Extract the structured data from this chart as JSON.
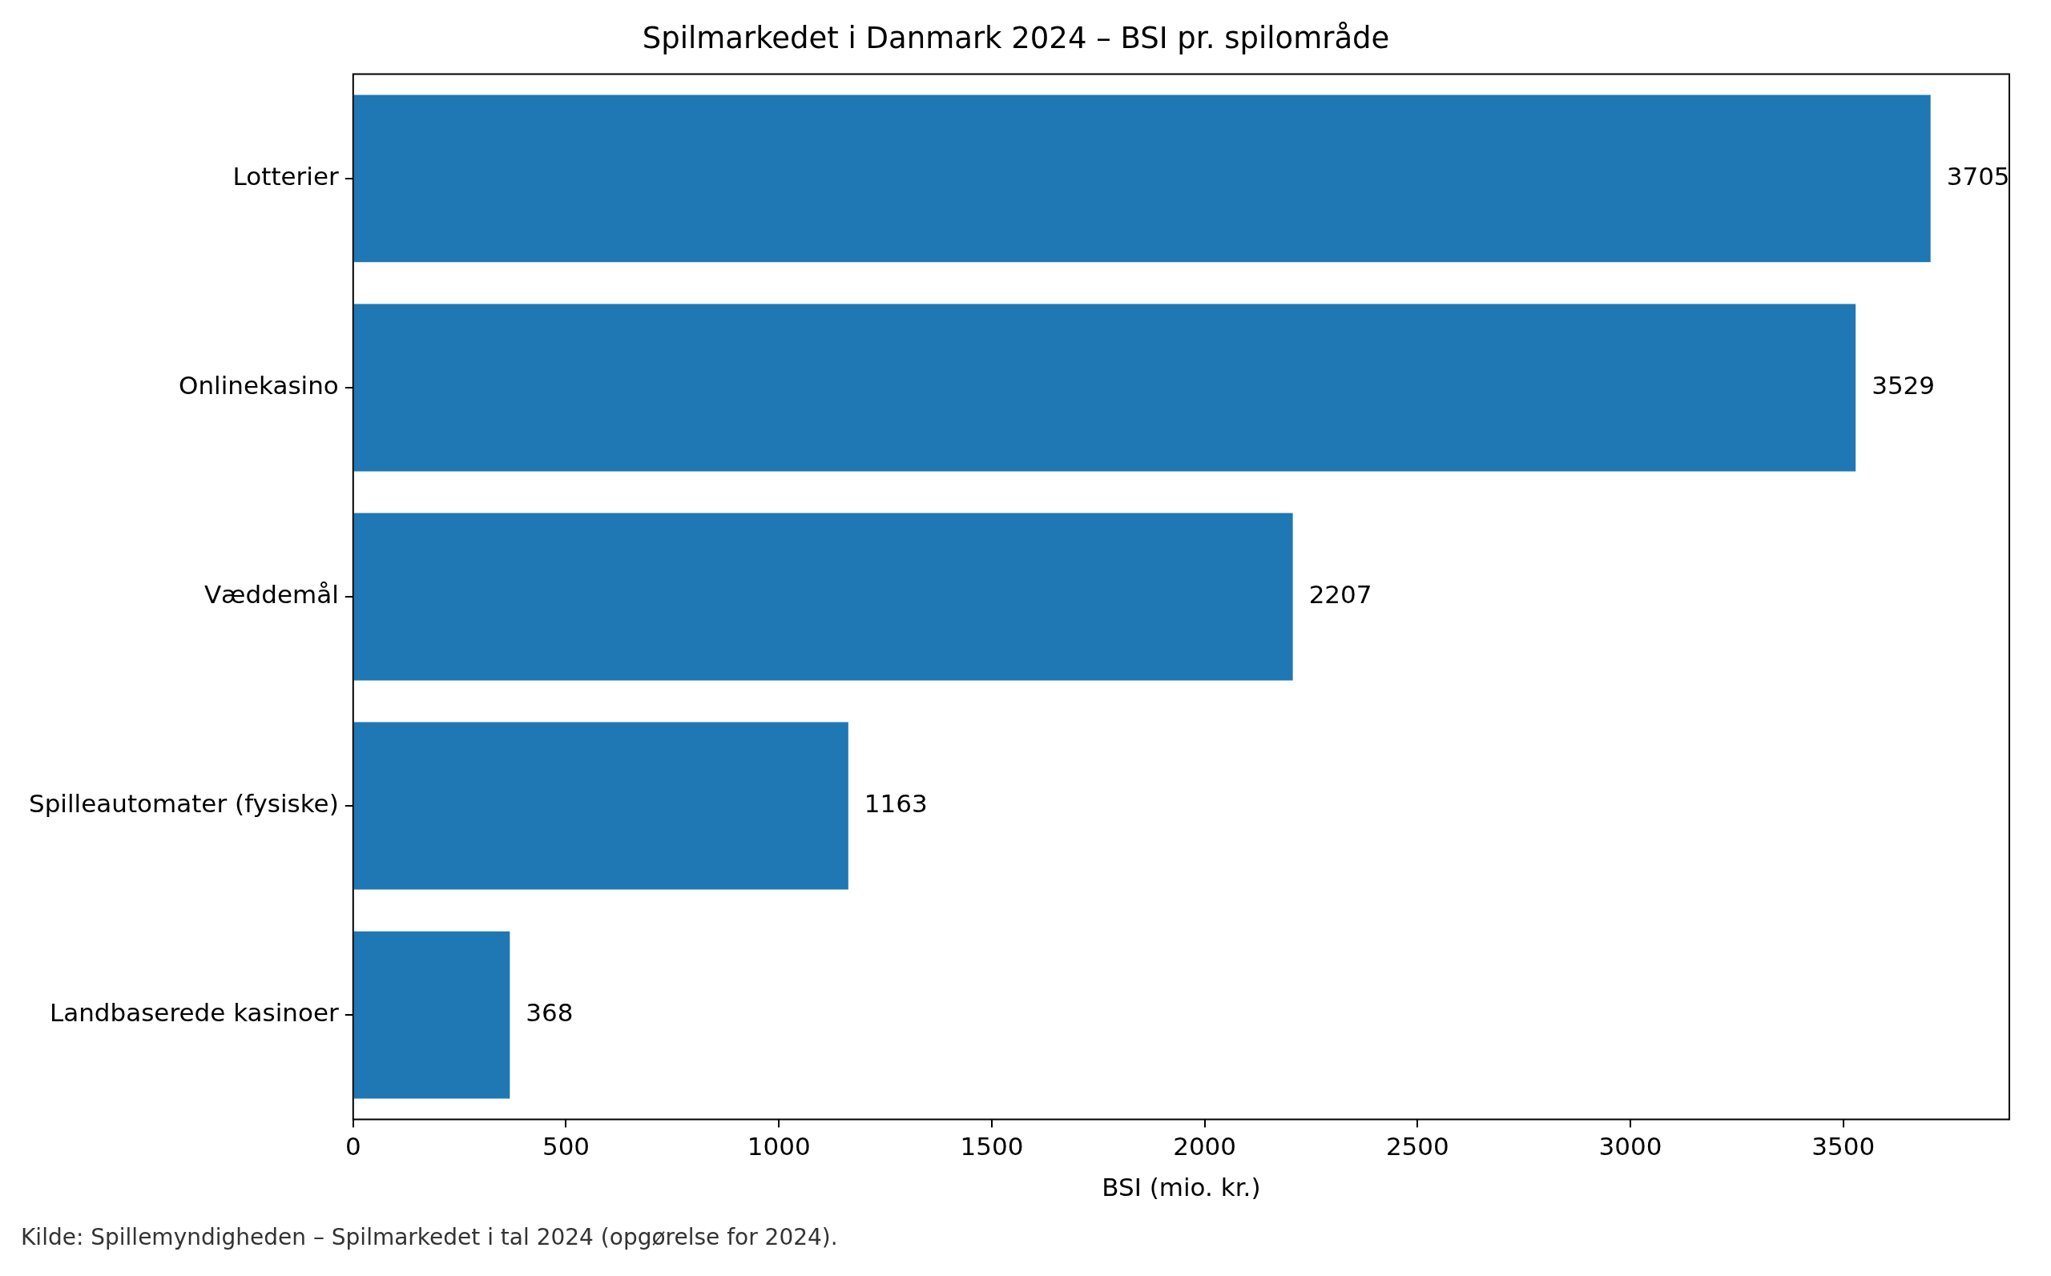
{
  "chart_data": {
    "type": "bar",
    "orientation": "horizontal",
    "title": "Spilmarkedet i Danmark 2024 – BSI pr. spilområde",
    "xlabel": "BSI (mio. kr.)",
    "categories": [
      "Lotterier",
      "Onlinekasino",
      "Væddemål",
      "Spilleautomater (fysiske)",
      "Landbaserede kasinoer"
    ],
    "values": [
      3705,
      3529,
      2207,
      1163,
      368
    ],
    "color": "#1f77b4",
    "xlim": [
      0,
      3890
    ],
    "xticks": [
      0,
      500,
      1000,
      1500,
      2000,
      2500,
      3000,
      3500
    ],
    "data_labels": true,
    "grid": false,
    "legend": false,
    "annotations": [
      "Kilde: Spillemyndigheden – Spilmarkedet i tal 2024 (opgørelse for 2024)."
    ]
  }
}
